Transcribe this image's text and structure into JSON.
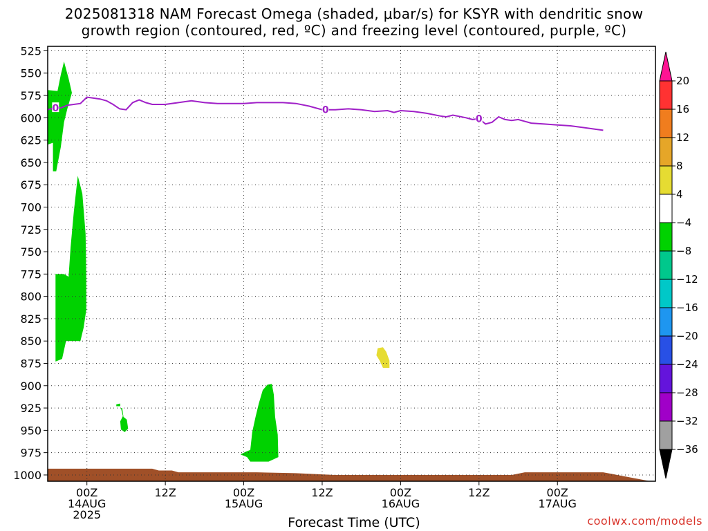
{
  "title": {
    "line1": "2025081318 NAM Forecast Omega (shaded, μbar/s) for KSYR with dendritic snow",
    "line2": "growth region (contoured, red, ºC) and freezing level (contoured, purple, ºC)"
  },
  "credit": "coolwx.com/models",
  "chart_data": {
    "type": "heatmap",
    "title": "2025081318 NAM Forecast Omega (shaded, μbar/s) for KSYR with dendritic snow growth region (contoured, red, ºC) and freezing level (contoured, purple, ºC)",
    "xlabel": "Forecast Time (UTC)",
    "ylabel": "",
    "x_range_hours": [
      18,
      111
    ],
    "y_range_mb": [
      1007,
      520
    ],
    "y_ticks": [
      525,
      550,
      575,
      600,
      625,
      650,
      675,
      700,
      725,
      750,
      775,
      800,
      825,
      850,
      875,
      900,
      925,
      950,
      975,
      1000
    ],
    "x_tick_labels": [
      {
        "hour": 24,
        "lines": [
          "00Z",
          "14AUG",
          "2025"
        ]
      },
      {
        "hour": 36,
        "lines": [
          "12Z"
        ]
      },
      {
        "hour": 48,
        "lines": [
          "00Z",
          "15AUG"
        ]
      },
      {
        "hour": 60,
        "lines": [
          "12Z"
        ]
      },
      {
        "hour": 72,
        "lines": [
          "00Z",
          "16AUG"
        ]
      },
      {
        "hour": 84,
        "lines": [
          "12Z"
        ]
      },
      {
        "hour": 96,
        "lines": [
          "00Z",
          "17AUG"
        ]
      }
    ],
    "grid": "dotted",
    "colorbar": {
      "levels": [
        20,
        16,
        12,
        8,
        4,
        -4,
        -8,
        -12,
        -16,
        -20,
        -24,
        -28,
        -32,
        -36
      ],
      "colors": [
        "#ff1493",
        "#ff3232",
        "#f07d1e",
        "#e6a628",
        "#e6dc32",
        "#ffffff",
        "#00d200",
        "#00c88c",
        "#00c8c8",
        "#1e96f0",
        "#2850e6",
        "#6414dc",
        "#a000c8",
        "#a0a0a0",
        "#000000"
      ]
    },
    "freezing_level": {
      "label": "0",
      "color": "#a020c8",
      "points": [
        [
          18,
          591
        ],
        [
          19,
          589
        ],
        [
          20,
          589
        ],
        [
          21,
          586
        ],
        [
          23,
          584
        ],
        [
          24,
          577
        ],
        [
          25,
          578
        ],
        [
          26,
          579
        ],
        [
          27,
          581
        ],
        [
          28,
          585
        ],
        [
          29,
          590
        ],
        [
          30,
          591
        ],
        [
          31,
          583
        ],
        [
          32,
          580
        ],
        [
          33,
          583
        ],
        [
          34,
          585
        ],
        [
          36,
          585
        ],
        [
          38,
          583
        ],
        [
          40,
          581
        ],
        [
          42,
          583
        ],
        [
          44,
          584
        ],
        [
          46,
          584
        ],
        [
          48,
          584
        ],
        [
          50,
          583
        ],
        [
          52,
          583
        ],
        [
          54,
          583
        ],
        [
          56,
          584
        ],
        [
          58,
          587
        ],
        [
          60,
          591
        ],
        [
          62,
          591
        ],
        [
          64,
          590
        ],
        [
          66,
          591
        ],
        [
          68,
          593
        ],
        [
          70,
          592
        ],
        [
          71,
          594
        ],
        [
          72,
          592
        ],
        [
          74,
          593
        ],
        [
          76,
          595
        ],
        [
          78,
          598
        ],
        [
          79,
          599
        ],
        [
          80,
          597
        ],
        [
          82,
          600
        ],
        [
          83,
          602
        ],
        [
          84,
          601
        ],
        [
          85,
          607
        ],
        [
          86,
          605
        ],
        [
          87,
          599
        ],
        [
          88,
          602
        ],
        [
          89,
          603
        ],
        [
          90,
          602
        ],
        [
          92,
          606
        ],
        [
          94,
          607
        ],
        [
          96,
          608
        ],
        [
          98,
          609
        ],
        [
          100,
          611
        ],
        [
          102,
          613
        ],
        [
          103,
          614
        ]
      ]
    },
    "shaded_regions": [
      {
        "name": "omega -4 to -8 (green)",
        "color": "#00d200",
        "points": [
          [
            18,
            569
          ],
          [
            19.5,
            570
          ],
          [
            20,
            552
          ],
          [
            20.5,
            537
          ],
          [
            21.2,
            556
          ],
          [
            21.7,
            572
          ],
          [
            21,
            590
          ],
          [
            20.5,
            605
          ],
          [
            20,
            633
          ],
          [
            19.3,
            660
          ],
          [
            18.8,
            660
          ],
          [
            18.8,
            628
          ],
          [
            18,
            630
          ]
        ]
      },
      {
        "name": "omega -4 to -8 (green)",
        "color": "#00d200",
        "points": [
          [
            21.2,
            778
          ],
          [
            21.5,
            745
          ],
          [
            22,
            705
          ],
          [
            22.6,
            665
          ],
          [
            23.3,
            685
          ],
          [
            23.8,
            730
          ],
          [
            23.9,
            780
          ],
          [
            23.9,
            815
          ],
          [
            23.5,
            835
          ],
          [
            23,
            850
          ],
          [
            20.8,
            850
          ],
          [
            20.2,
            870
          ],
          [
            19.2,
            873
          ],
          [
            19.2,
            775
          ],
          [
            20.5,
            775
          ]
        ]
      },
      {
        "name": "omega -4 to -8 (green)",
        "color": "#00d200",
        "points": [
          [
            29.4,
            925
          ],
          [
            29.6,
            935
          ],
          [
            30.1,
            938
          ],
          [
            30.3,
            948
          ],
          [
            29.8,
            952
          ],
          [
            29.2,
            949
          ],
          [
            29.1,
            940
          ],
          [
            29.5,
            934
          ],
          [
            29.2,
            925
          ]
        ]
      },
      {
        "name": "omega -4 to -8 (green)",
        "color": "#00d200",
        "points": [
          [
            28.5,
            921
          ],
          [
            29.1,
            920
          ],
          [
            29.1,
            923
          ],
          [
            28.5,
            923
          ]
        ]
      },
      {
        "name": "omega -4 to -8 (green)",
        "color": "#00d200",
        "points": [
          [
            50.9,
            905
          ],
          [
            51.6,
            899
          ],
          [
            52.3,
            898
          ],
          [
            52.6,
            910
          ],
          [
            52.8,
            935
          ],
          [
            53.2,
            955
          ],
          [
            53.3,
            980
          ],
          [
            51.8,
            985
          ],
          [
            49,
            985
          ],
          [
            48.5,
            980
          ],
          [
            47.5,
            977
          ],
          [
            48.3,
            974
          ],
          [
            49,
            972
          ],
          [
            49.3,
            952
          ],
          [
            49.8,
            935
          ],
          [
            50.3,
            920
          ]
        ]
      },
      {
        "name": "omega 4 to 8 (yellow)",
        "color": "#e6dc32",
        "points": [
          [
            68.5,
            858
          ],
          [
            69.3,
            857
          ],
          [
            69.8,
            862
          ],
          [
            70.3,
            872
          ],
          [
            70.3,
            880
          ],
          [
            69.3,
            880
          ],
          [
            68.8,
            872
          ],
          [
            68.3,
            866
          ]
        ]
      }
    ],
    "terrain": {
      "color": "#a05028",
      "points": [
        [
          18,
          993
        ],
        [
          27,
          993
        ],
        [
          34,
          993
        ],
        [
          35,
          995
        ],
        [
          37,
          995
        ],
        [
          38,
          997
        ],
        [
          44,
          997
        ],
        [
          50,
          997
        ],
        [
          56,
          998
        ],
        [
          62,
          1000
        ],
        [
          70,
          1000
        ],
        [
          84,
          1000
        ],
        [
          89,
          1000
        ],
        [
          91,
          997
        ],
        [
          100,
          997
        ],
        [
          103,
          997
        ]
      ]
    }
  }
}
